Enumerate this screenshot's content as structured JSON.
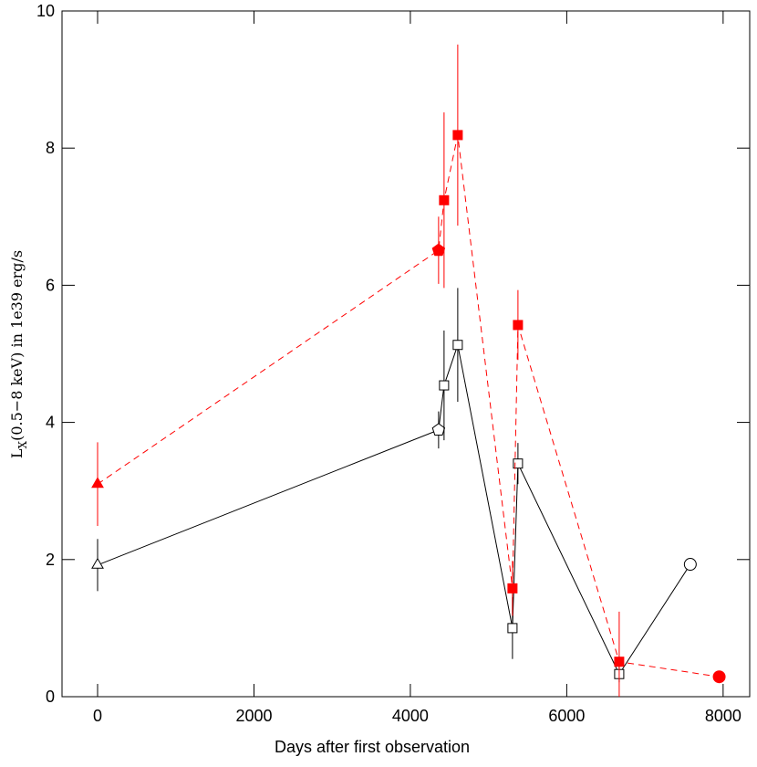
{
  "chart_data": {
    "type": "line",
    "xlabel": "Days after first observation",
    "ylabel": {
      "main": "L",
      "sub": "X",
      "rest": "(0.5−8 keV) in 1e39 erg/s"
    },
    "xlim": [
      -455,
      8340
    ],
    "ylim": [
      0,
      10
    ],
    "xticks": [
      0,
      2000,
      4000,
      6000,
      8000
    ],
    "yticks": [
      0,
      2,
      4,
      6,
      8,
      10
    ],
    "series": [
      {
        "color": "#000000",
        "linestyle": "solid",
        "filled": false,
        "x": [
          0,
          4361,
          4431,
          4606,
          5306,
          5376,
          6671,
          7580
        ],
        "values": [
          1.92,
          3.89,
          4.54,
          5.13,
          1.0,
          3.4,
          0.33,
          1.93
        ],
        "errors": [
          0.38,
          0.27,
          0.8,
          0.83,
          0.45,
          0.3,
          0.12,
          null
        ],
        "markers": [
          "triangle",
          "pentagon",
          "square",
          "square",
          "square",
          "square",
          "square",
          "circle"
        ]
      },
      {
        "color": "#ff0000",
        "linestyle": "dashed",
        "filled": true,
        "x": [
          0,
          4361,
          4431,
          4606,
          5306,
          5376,
          6671,
          7950
        ],
        "values": [
          3.1,
          6.51,
          7.24,
          8.19,
          1.58,
          5.42,
          0.51,
          0.29
        ],
        "errors": [
          0.61,
          0.49,
          1.28,
          1.32,
          0.4,
          0.51,
          0.73,
          null
        ],
        "markers": [
          "triangle",
          "pentagon",
          "square",
          "square",
          "square",
          "square",
          "square",
          "circle"
        ]
      }
    ]
  }
}
